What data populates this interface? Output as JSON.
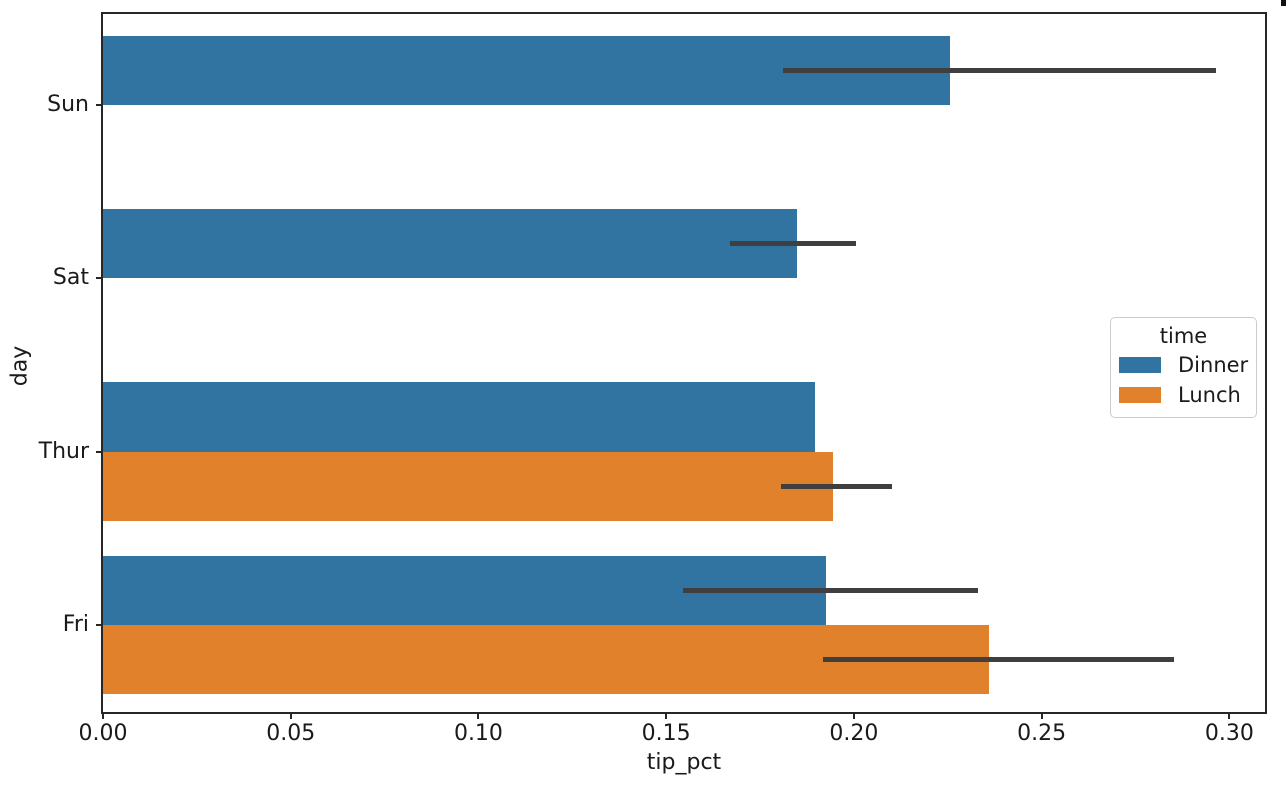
{
  "chart_data": {
    "type": "bar",
    "orientation": "horizontal",
    "title": "",
    "xlabel": "tip_pct",
    "ylabel": "day",
    "categories": [
      "Sun",
      "Sat",
      "Thur",
      "Fri"
    ],
    "series": [
      {
        "name": "Dinner",
        "color": "#3274a1",
        "values": [
          0.2255,
          0.1848,
          0.1896,
          0.1925
        ],
        "ci_low": [
          0.181,
          0.167,
          null,
          0.1545
        ],
        "ci_high": [
          0.2965,
          0.2005,
          null,
          0.233
        ]
      },
      {
        "name": "Lunch",
        "color": "#e1812c",
        "values": [
          null,
          null,
          0.1944,
          0.236
        ],
        "ci_low": [
          null,
          null,
          0.1806,
          0.1917
        ],
        "ci_high": [
          null,
          null,
          0.2101,
          0.2852
        ]
      }
    ],
    "xlim": [
      0,
      0.3095
    ],
    "x_ticks": {
      "values": [
        0,
        0.05,
        0.1,
        0.15,
        0.2,
        0.25,
        0.3
      ],
      "labels": [
        "0.00",
        "0.05",
        "0.10",
        "0.15",
        "0.20",
        "0.25",
        "0.30"
      ]
    },
    "grid": false,
    "error_bar_color": "#3f3f3f",
    "legend": {
      "title": "time",
      "position": "center right",
      "entries": [
        {
          "label": "Dinner",
          "color": "#3274a1"
        },
        {
          "label": "Lunch",
          "color": "#e1812c"
        }
      ]
    }
  }
}
